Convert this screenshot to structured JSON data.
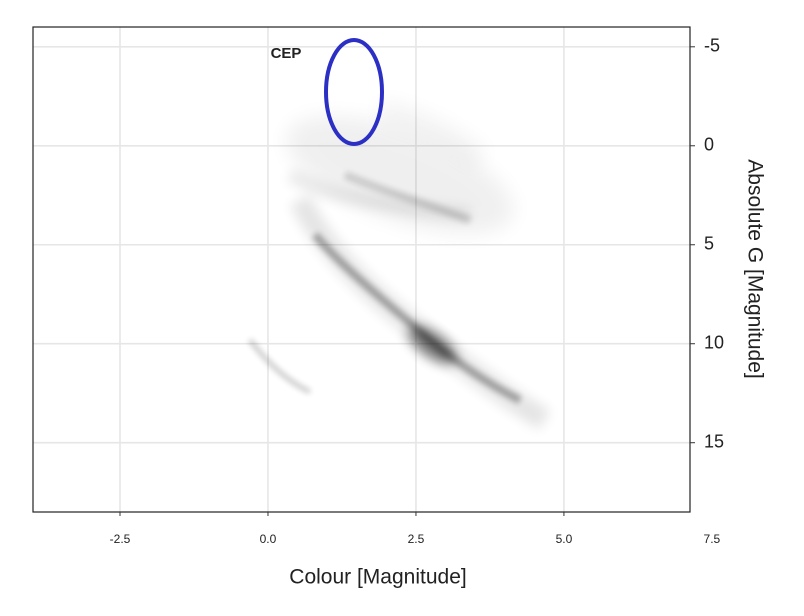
{
  "chart_data": {
    "type": "density",
    "x_label": "Colour [Magnitude]",
    "y_label": "Absolute G [Magnitude]",
    "xlim": [
      -3.97,
      7.13
    ],
    "ylim": [
      -6.0,
      18.5
    ],
    "y_inverted": true,
    "y_axis_side": "right",
    "xticks": [
      -2.5,
      {
        "value": 0,
        "label": "0.0"
      },
      2.5,
      {
        "value": 5,
        "label": "5.0"
      },
      7.5
    ],
    "yticks": [
      -5,
      0,
      5,
      10,
      15
    ],
    "grid": true,
    "annotation": {
      "text": "CEP",
      "color": "#2b2fc4"
    }
  }
}
